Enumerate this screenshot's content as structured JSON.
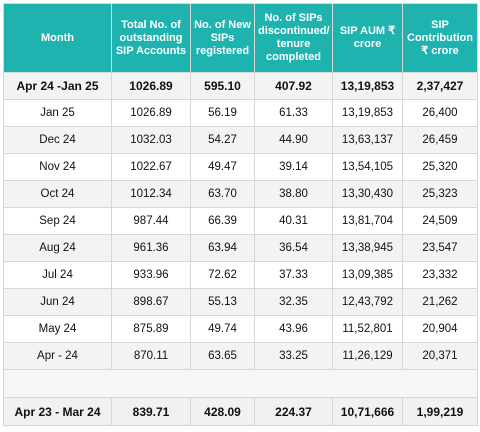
{
  "headers": [
    "Month",
    "Total No. of outstanding SIP Accounts",
    "No. of New SIPs registered",
    "No. of SIPs discontinued/ tenure completed",
    "SIP AUM ₹ crore",
    "SIP Contribution ₹ crore"
  ],
  "summary": [
    "Apr 24 -Jan 25",
    "1026.89",
    "595.10",
    "407.92",
    "13,19,853",
    "2,37,427"
  ],
  "rows": [
    [
      "Jan 25",
      "1026.89",
      "56.19",
      "61.33",
      "13,19,853",
      "26,400"
    ],
    [
      "Dec 24",
      "1032.03",
      "54.27",
      "44.90",
      "13,63,137",
      "26,459"
    ],
    [
      "Nov 24",
      "1022.67",
      "49.47",
      "39.14",
      "13,54,105",
      "25,320"
    ],
    [
      "Oct 24",
      "1012.34",
      "63.70",
      "38.80",
      "13,30,430",
      "25,323"
    ],
    [
      "Sep 24",
      "987.44",
      "66.39",
      "40.31",
      "13,81,704",
      "24,509"
    ],
    [
      "Aug 24",
      "961.36",
      "63.94",
      "36.54",
      "13,38,945",
      "23,547"
    ],
    [
      "Jul 24",
      "933.96",
      "72.62",
      "37.33",
      "13,09,385",
      "23,332"
    ],
    [
      "Jun 24",
      "898.67",
      "55.13",
      "32.35",
      "12,43,792",
      "21,262"
    ],
    [
      "May 24",
      "875.89",
      "49.74",
      "43.96",
      "11,52,801",
      "20,904"
    ],
    [
      "Apr - 24",
      "870.11",
      "63.65",
      "33.25",
      "11,26,129",
      "20,371"
    ]
  ],
  "footer": [
    "Apr 23 - Mar 24",
    "839.71",
    "428.09",
    "224.37",
    "10,71,666",
    "1,99,219"
  ]
}
